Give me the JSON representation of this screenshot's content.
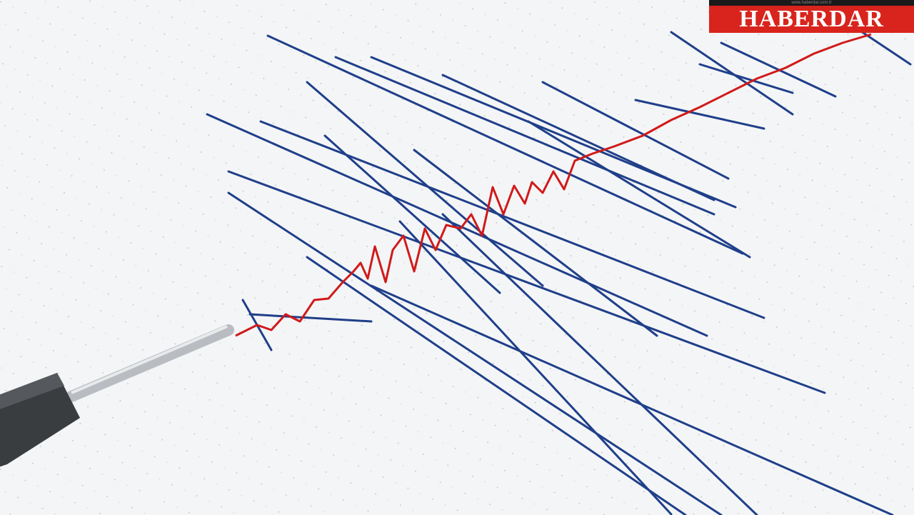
{
  "image": {
    "subject": "seismograph",
    "colors": {
      "paper": "#f4f5f6",
      "trace_blue": "#1f3f8a",
      "trace_red": "#d01a1a",
      "pen_body": "#3a3d40",
      "pen_tip": "#c9ccd0"
    }
  },
  "watermark": {
    "url": "www.haberdar.com.tr",
    "name": "HABERDAR",
    "colors": {
      "band": "#d8241c",
      "strip": "#1a1a1a",
      "text": "#ffffff"
    }
  }
}
